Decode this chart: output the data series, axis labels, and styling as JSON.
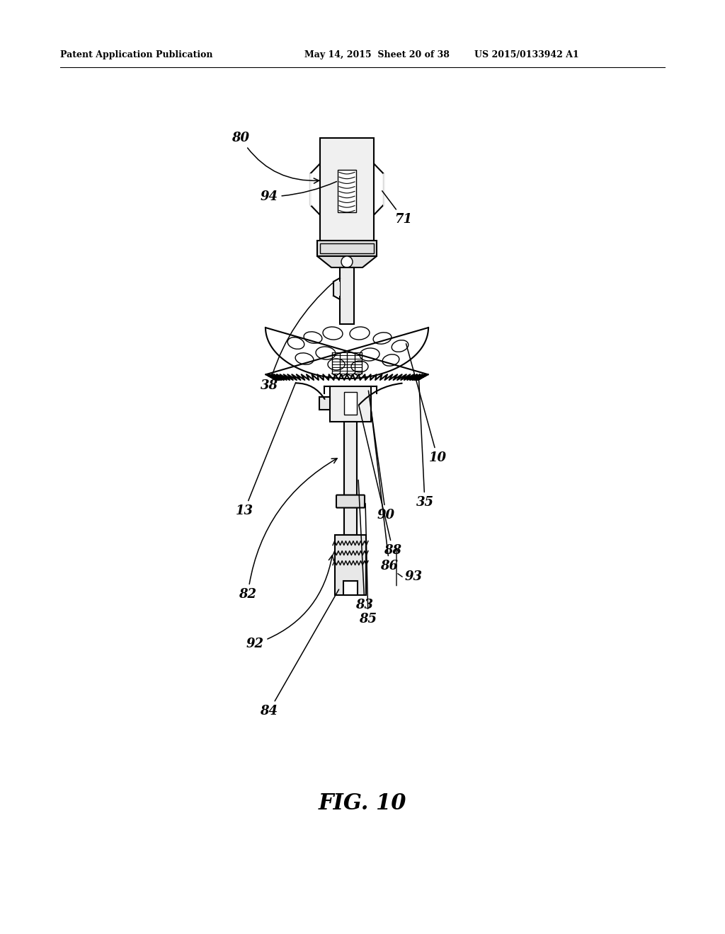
{
  "header_left": "Patent Application Publication",
  "header_mid": "May 14, 2015  Sheet 20 of 38",
  "header_right": "US 2015/0133942 A1",
  "figure_label": "FIG. 10",
  "bg_color": "#ffffff",
  "line_color": "#000000"
}
